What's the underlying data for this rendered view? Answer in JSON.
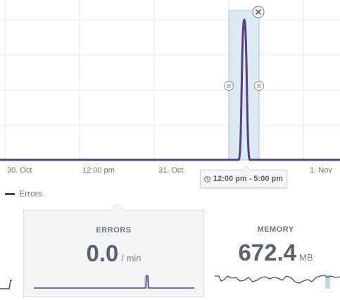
{
  "chart": {
    "x_ticks": [
      "30. Oct",
      "12:00 pm",
      "31. Oct",
      "1. Nov"
    ],
    "selection_range": "12:00 pm - 5:00 pm",
    "legend": "Errors",
    "series_color": "#5b3f84"
  },
  "cards": {
    "errors": {
      "title": "ERRORS",
      "value": "0.0",
      "unit": "/ min"
    },
    "memory": {
      "title": "MEMORY",
      "value": "672.4",
      "unit": "MB"
    }
  },
  "icons": {
    "close": "close-icon",
    "handle": "grip-handle-icon",
    "clock": "clock-icon"
  }
}
